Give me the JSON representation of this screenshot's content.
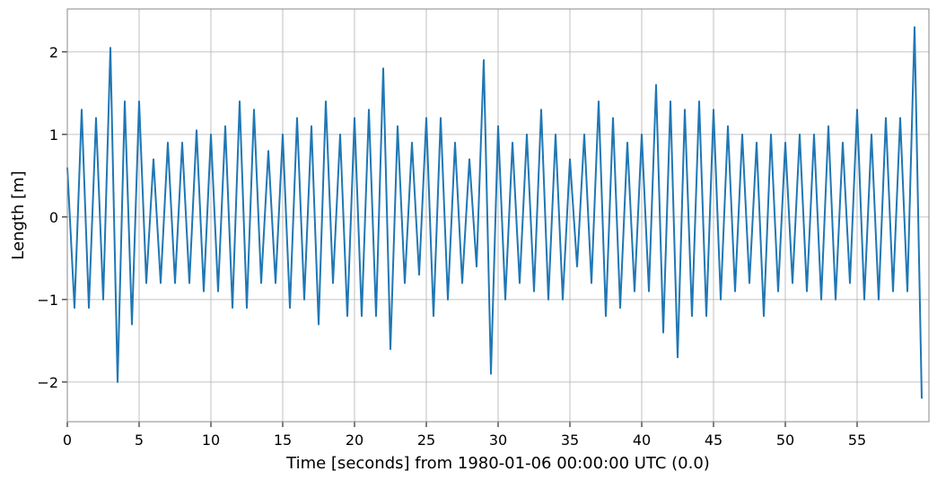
{
  "chart_data": {
    "type": "line",
    "x_label": "Time [seconds] from 1980-01-06 00:00:00 UTC (0.0)",
    "y_label": "Length [m]",
    "xlim": [
      0,
      60
    ],
    "ylim": [
      -2.48,
      2.52
    ],
    "xticks": [
      0,
      5,
      10,
      15,
      20,
      25,
      30,
      35,
      40,
      45,
      50,
      55
    ],
    "yticks": [
      {
        "value": -2,
        "label": "−2"
      },
      {
        "value": -1,
        "label": "−1"
      },
      0,
      1,
      2
    ],
    "grid": true,
    "x": [
      0,
      0.5,
      1,
      1.5,
      2,
      2.5,
      3,
      3.5,
      4,
      4.5,
      5,
      5.5,
      6,
      6.5,
      7,
      7.5,
      8,
      8.5,
      9,
      9.5,
      10,
      10.5,
      11,
      11.5,
      12,
      12.5,
      13,
      13.5,
      14,
      14.5,
      15,
      15.5,
      16,
      16.5,
      17,
      17.5,
      18,
      18.5,
      19,
      19.5,
      20,
      20.5,
      21,
      21.5,
      22,
      22.5,
      23,
      23.5,
      24,
      24.5,
      25,
      25.5,
      26,
      26.5,
      27,
      27.5,
      28,
      28.5,
      29,
      29.5,
      30,
      30.5,
      31,
      31.5,
      32,
      32.5,
      33,
      33.5,
      34,
      34.5,
      35,
      35.5,
      36,
      36.5,
      37,
      37.5,
      38,
      38.5,
      39,
      39.5,
      40,
      40.5,
      41,
      41.5,
      42,
      42.5,
      43,
      43.5,
      44,
      44.5,
      45,
      45.5,
      46,
      46.5,
      47,
      47.5,
      48,
      48.5,
      49,
      49.5,
      50,
      50.5,
      51,
      51.5,
      52,
      52.5,
      53,
      53.5,
      54,
      54.5,
      55,
      55.5,
      56,
      56.5,
      57,
      57.5,
      58,
      58.5,
      59,
      59.5
    ],
    "series": [
      {
        "color": "#1f77b4",
        "values": [
          0.6,
          -1.1,
          1.3,
          -1.1,
          1.2,
          -1.0,
          2.05,
          -2.0,
          1.4,
          -1.3,
          1.4,
          -0.8,
          0.7,
          -0.8,
          0.9,
          -0.8,
          0.9,
          -0.8,
          1.05,
          -0.9,
          1.0,
          -0.9,
          1.1,
          -1.1,
          1.4,
          -1.1,
          1.3,
          -0.8,
          0.8,
          -0.8,
          1.0,
          -1.1,
          1.2,
          -1.0,
          1.1,
          -1.3,
          1.4,
          -0.8,
          1.0,
          -1.2,
          1.2,
          -1.2,
          1.3,
          -1.2,
          1.8,
          -1.6,
          1.1,
          -0.8,
          0.9,
          -0.7,
          1.2,
          -1.2,
          1.2,
          -1.0,
          0.9,
          -0.8,
          0.7,
          -0.6,
          1.9,
          -1.9,
          1.1,
          -1.0,
          0.9,
          -0.8,
          1.0,
          -0.9,
          1.3,
          -1.0,
          1.0,
          -1.0,
          0.7,
          -0.6,
          1.0,
          -0.8,
          1.4,
          -1.2,
          1.2,
          -1.1,
          0.9,
          -0.9,
          1.0,
          -0.9,
          1.6,
          -1.4,
          1.4,
          -1.7,
          1.3,
          -1.2,
          1.4,
          -1.2,
          1.3,
          -1.0,
          1.1,
          -0.9,
          1.0,
          -0.8,
          0.9,
          -1.2,
          1.0,
          -0.9,
          0.9,
          -0.8,
          1.0,
          -0.9,
          1.0,
          -1.0,
          1.1,
          -1.0,
          0.9,
          -0.8,
          1.3,
          -1.0,
          1.0,
          -1.0,
          1.2,
          -0.9,
          1.2,
          -0.9,
          2.3,
          -2.2
        ]
      }
    ]
  }
}
